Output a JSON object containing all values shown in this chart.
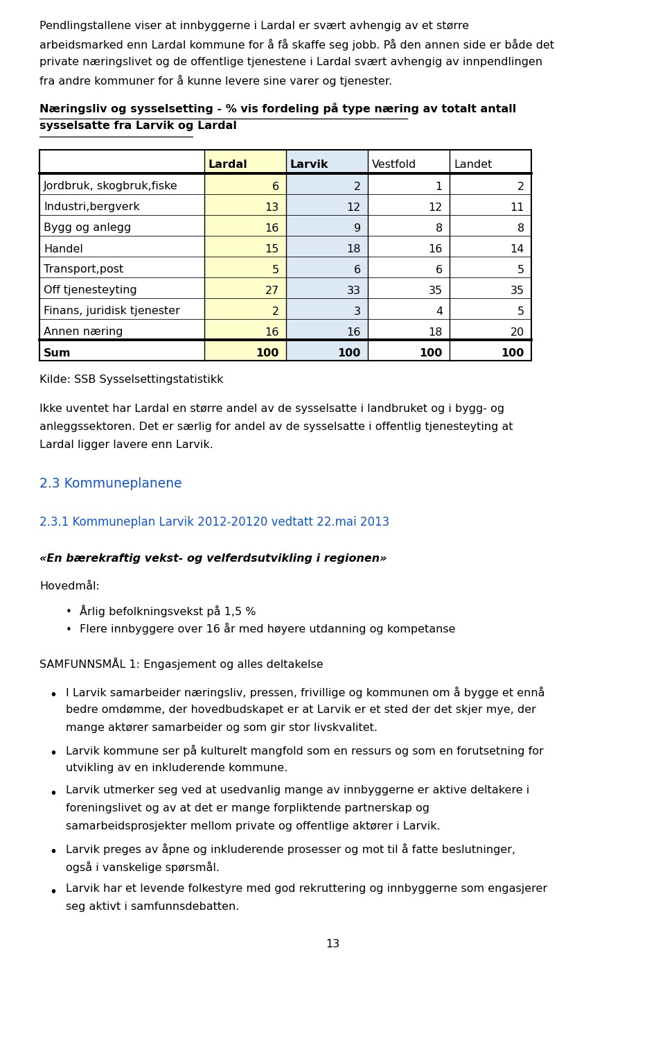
{
  "page_bg": "#ffffff",
  "body_text_color": "#000000",
  "link_color": "#1155cc",
  "font_size_body": 11.5,
  "paragraph1": "Pendlingstallene viser at innbyggerne i Lardal er svært avhengig av et større arbeidsmarked enn Lardal kommune for å få skaffe seg jobb. På den annen side er både det private næringslivet og de offentlige tjenestene i Lardal svært avhengig av innpendlingen fra andre kommuner for å kunne levere sine varer og tjenester.",
  "table_heading_bold": "Næringsliv og sysselsetting - % vis fordeling på type næring av totalt antall sysselsatte fra Larvik og Lardal",
  "table_columns": [
    "",
    "Lardal",
    "Larvik",
    "Vestfold",
    "Landet"
  ],
  "table_col_bold": [
    1,
    2
  ],
  "table_rows": [
    [
      "Jordbruk, skogbruk,fiske",
      6,
      2,
      1,
      2
    ],
    [
      "Industri,bergverk",
      13,
      12,
      12,
      11
    ],
    [
      "Bygg og anlegg",
      16,
      9,
      8,
      8
    ],
    [
      "Handel",
      15,
      18,
      16,
      14
    ],
    [
      "Transport,post",
      5,
      6,
      6,
      5
    ],
    [
      "Off tjenesteyting",
      27,
      33,
      35,
      35
    ],
    [
      "Finans, juridisk tjenester",
      2,
      3,
      4,
      5
    ],
    [
      "Annen næring",
      16,
      16,
      18,
      20
    ],
    [
      "Sum",
      100,
      100,
      100,
      100
    ]
  ],
  "col_colors": [
    "#ffffff",
    "#ffffcc",
    "#dce9f5",
    "#ffffff",
    "#ffffff"
  ],
  "sum_row_index": 8,
  "kilde_text": "Kilde: SSB Sysselsettingstatistikk",
  "paragraph2": "Ikke uventet har Lardal en større andel av de sysselsatte i landbruket og i bygg- og anleggssektoren. Det er særlig for andel av de sysselsatte i offentlig tjenesteyting at Lardal ligger lavere enn Larvik.",
  "section_heading": "2.3 Kommuneplanene",
  "subsection_heading": "2.3.1 Kommuneplan Larvik 2012-20120 vedtatt 22.mai 2013",
  "italic_bold_heading": "«En bærekraftig vekst- og velferdsutvikling i regionen»",
  "hovedmal_label": "Hovedmål:",
  "bullets1": [
    "Årlig befolkningsvekst på 1,5 %",
    "Flere innbyggere over 16 år med høyere utdanning og kompetanse"
  ],
  "samfunnsmaal_label": "SAMFUNNSMÅL 1: Engasjement og alles deltakelse",
  "bullets2": [
    "I Larvik samarbeider næringsliv, pressen, frivillige og kommunen om å bygge et ennå bedre omdømme, der hovedbudskapet er at Larvik er et sted der det skjer mye, der mange aktører samarbeider og som gir stor livskvalitet.",
    "Larvik kommune ser på kulturelt mangfold som en ressurs og som en forutsetning for utvikling av en inkluderende kommune.",
    "Larvik utmerker seg ved at usedvanlig mange av innbyggerne er aktive deltakere i foreningslivet og av at det er mange forpliktende partnerskap og samarbeidsprosjekter mellom private og offentlige aktører i Larvik.",
    "Larvik preges av åpne og inkluderende prosesser og mot til å fatte beslutninger, også i vanskelige spørsmål.",
    "Larvik har et levende folkestyre med god rekruttering og innbyggerne som engasjerer seg aktivt i samfunnsdebatten."
  ],
  "page_number": "13"
}
